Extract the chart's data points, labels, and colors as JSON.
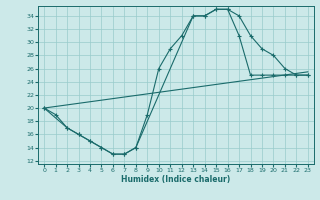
{
  "title": "",
  "xlabel": "Humidex (Indice chaleur)",
  "bg_color": "#cce9e9",
  "grid_color": "#99cccc",
  "line_color": "#1a6b6b",
  "xlim": [
    -0.5,
    23.5
  ],
  "ylim": [
    11.5,
    35.5
  ],
  "yticks": [
    12,
    14,
    16,
    18,
    20,
    22,
    24,
    26,
    28,
    30,
    32,
    34
  ],
  "xticks": [
    0,
    1,
    2,
    3,
    4,
    5,
    6,
    7,
    8,
    9,
    10,
    11,
    12,
    13,
    14,
    15,
    16,
    17,
    18,
    19,
    20,
    21,
    22,
    23
  ],
  "curve1_x": [
    0,
    1,
    2,
    3,
    4,
    5,
    6,
    7,
    8,
    9,
    10,
    11,
    12,
    13,
    14,
    15,
    16,
    17,
    18,
    19,
    20,
    21,
    22,
    23
  ],
  "curve1_y": [
    20,
    19,
    17,
    16,
    15,
    14,
    13,
    13,
    14,
    19,
    26,
    29,
    31,
    34,
    34,
    35,
    35,
    34,
    31,
    29,
    28,
    26,
    25,
    25
  ],
  "curve2_x": [
    0,
    2,
    3,
    4,
    5,
    6,
    7,
    8,
    13,
    14,
    15,
    16,
    17,
    18,
    19,
    20,
    21,
    22,
    23
  ],
  "curve2_y": [
    20,
    17,
    16,
    15,
    14,
    13,
    13,
    14,
    34,
    34,
    35,
    35,
    31,
    25,
    25,
    25,
    25,
    25,
    25
  ],
  "line3_x": [
    0,
    23
  ],
  "line3_y": [
    20,
    25.5
  ]
}
